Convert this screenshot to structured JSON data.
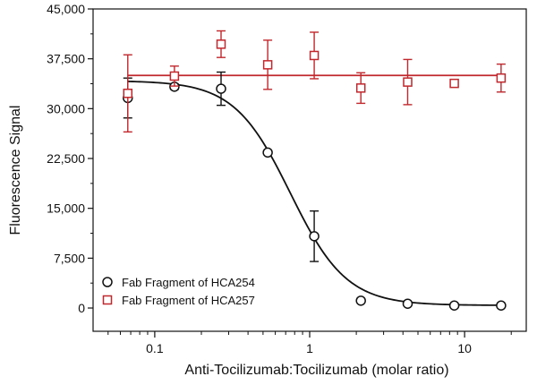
{
  "chart_data": {
    "type": "scatter",
    "title": "",
    "xlabel": "Anti-Tocilizumab:Tocilizumab (molar ratio)",
    "ylabel": "Fluorescence Signal",
    "xscale": "log",
    "xlim": [
      0.04,
      25
    ],
    "ylim": [
      -3500,
      45000
    ],
    "xticks": [
      0.1,
      1,
      10
    ],
    "xtick_labels": [
      "0.1",
      "1",
      "10"
    ],
    "yticks": [
      0,
      7500,
      15000,
      22500,
      30000,
      37500,
      45000
    ],
    "ytick_labels": [
      "0",
      "7,500",
      "15,000",
      "22,500",
      "30,000",
      "37,500",
      "45,000"
    ],
    "grid": false,
    "legend_position": "bottom-left",
    "series": [
      {
        "name": "Fab Fragment of HCA254",
        "marker": "circle",
        "color": "#111111",
        "x": [
          0.067,
          0.134,
          0.268,
          0.536,
          1.07,
          2.14,
          4.29,
          8.58,
          17.2
        ],
        "y": [
          31600,
          33300,
          33000,
          23400,
          10800,
          1100,
          650,
          380,
          380
        ],
        "err": [
          3000,
          400,
          2500,
          200,
          3800,
          0,
          0,
          0,
          0
        ],
        "fit": {
          "type": "sigmoid",
          "top": 34200,
          "bottom": 400,
          "ec50": 0.75,
          "hill": 2.4
        }
      },
      {
        "name": "Fab Fragment of HCA257",
        "marker": "square",
        "color": "#c0282d",
        "x": [
          0.067,
          0.134,
          0.268,
          0.536,
          1.07,
          2.14,
          4.29,
          8.58,
          17.2
        ],
        "y": [
          32300,
          34900,
          39700,
          36600,
          38000,
          33100,
          34000,
          33800,
          34600
        ],
        "err": [
          5800,
          1500,
          2000,
          3700,
          3500,
          2300,
          3400,
          0,
          2100
        ],
        "fit": {
          "type": "constant",
          "value": 35000
        }
      }
    ]
  }
}
